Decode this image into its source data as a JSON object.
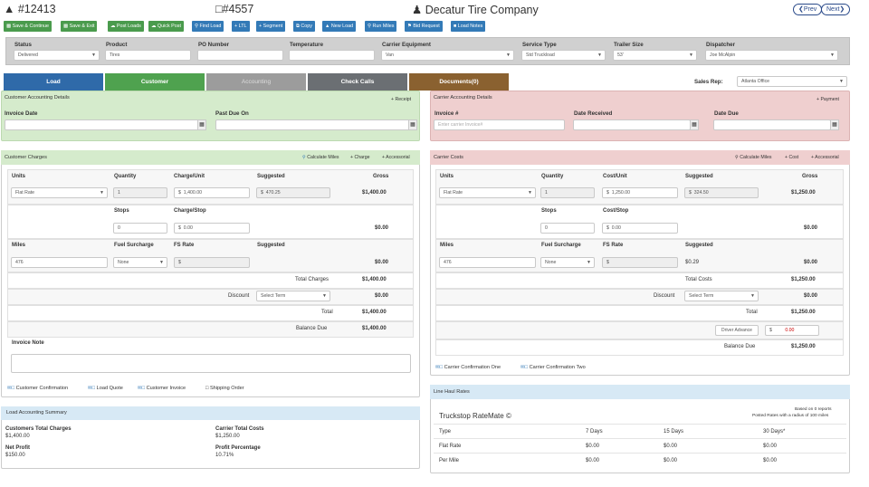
{
  "header": {
    "load_id": "#12413",
    "doc_id": "#4557",
    "company": "Decatur Tire Company",
    "prev": "Prev",
    "next": "Next"
  },
  "toolbar": [
    "Save & Continue",
    "Save & Exit",
    "Post Loads",
    "Quick Post",
    "Find Load",
    "LTL",
    "Segment",
    "Copy",
    "New Load",
    "Run Miles",
    "Bid Request",
    "Load Notes"
  ],
  "form": {
    "status_label": "Status",
    "status": "Delivered",
    "product_label": "Product",
    "product": "Tires",
    "po_label": "PO Number",
    "po": "",
    "temp_label": "Temperature",
    "temp": "",
    "equip_label": "Carrier Equipment",
    "equip": "Van",
    "service_label": "Service Type",
    "service": "Std Truckload",
    "trailer_label": "Trailer Size",
    "trailer": "53'",
    "dispatcher_label": "Dispatcher",
    "dispatcher": "Joe McAlpin"
  },
  "tabs": [
    "Load",
    "Customer",
    "Accounting",
    "Check Calls",
    "Documents(0)"
  ],
  "sales_rep_label": "Sales Rep:",
  "sales_rep": "Atlanta Office",
  "cust_acct": {
    "title": "Customer Accounting Details",
    "receipt": "+ Receipt",
    "invoice_date": "Invoice Date",
    "past_due": "Past Due On"
  },
  "carr_acct": {
    "title": "Carrier Accounting Details",
    "payment": "+ Payment",
    "invoice_no": "Invoice #",
    "invoice_placeholder": "Enter carrier Invoice#",
    "date_received": "Date Received",
    "date_due": "Date Due"
  },
  "cust_charges": {
    "title": "Customer Charges",
    "calc": "Calculate Miles",
    "charge": "+ Charge",
    "accessorial": "+ Accessorial",
    "h_units": "Units",
    "h_qty": "Quantity",
    "h_cpu": "Charge/Unit",
    "h_sugg": "Suggested",
    "h_gross": "Gross",
    "units": "Flat Rate",
    "qty": "1",
    "cpu": "1,400.00",
    "sugg": "470.25",
    "gross": "$1,400.00",
    "h_stops": "Stops",
    "h_cps": "Charge/Stop",
    "stops": "0",
    "cps": "0.00",
    "stops_gross": "$0.00",
    "h_miles": "Miles",
    "h_fuel": "Fuel Surcharge",
    "h_fs": "FS Rate",
    "h_sugg2": "Suggested",
    "miles": "476",
    "fuel": "None",
    "fs_gross": "$0.00",
    "total_charges_label": "Total Charges",
    "total_charges": "$1,400.00",
    "discount_label": "Discount",
    "discount": "Select Term",
    "discount_val": "$0.00",
    "total_label": "Total",
    "total": "$1,400.00",
    "balance_label": "Balance Due",
    "balance": "$1,400.00",
    "note_label": "Invoice Note",
    "links": [
      "Customer Confirmation",
      "Load Quote",
      "Customer Invoice",
      "Shipping Order"
    ]
  },
  "carr_costs": {
    "title": "Carrier Costs",
    "calc": "Calculate Miles",
    "cost": "+ Cost",
    "accessorial": "+ Accessorial",
    "h_units": "Units",
    "h_qty": "Quantity",
    "h_cpu": "Cost/Unit",
    "h_sugg": "Suggested",
    "h_gross": "Gross",
    "units": "Flat Rate",
    "qty": "1",
    "cpu": "1,250.00",
    "sugg": "324.50",
    "gross": "$1,250.00",
    "h_stops": "Stops",
    "h_cps": "Cost/Stop",
    "stops": "0",
    "cps": "0.00",
    "stops_gross": "$0.00",
    "h_miles": "Miles",
    "h_fuel": "Fuel Surcharge",
    "h_fs": "FS Rate",
    "h_sugg2": "Suggested",
    "miles": "476",
    "fuel": "None",
    "fs_sugg": "$0.29",
    "fs_gross": "$0.00",
    "total_costs_label": "Total Costs",
    "total_costs": "$1,250.00",
    "discount_label": "Discount",
    "discount": "Select Term",
    "discount_val": "$0.00",
    "total_label": "Total",
    "total": "$1,250.00",
    "driver_adv": "Driver Advance",
    "adv_val": "0.00",
    "balance_label": "Balance Due",
    "balance": "$1,250.00",
    "links": [
      "Carrier Confirmation One",
      "Carrier Confirmation Two"
    ]
  },
  "summary": {
    "title": "Load Accounting Summary",
    "cust_total_label": "Customers Total Charges",
    "cust_total": "$1,400.00",
    "carr_total_label": "Carrier Total Costs",
    "carr_total": "$1,250.00",
    "profit_label": "Net Profit",
    "profit": "$150.00",
    "pct_label": "Profit Percentage",
    "pct": "10.71%"
  },
  "linehaul": {
    "title": "Line Haul Rates",
    "rm_title": "Truckstop RateMate ©",
    "based": "Based on 0 reports",
    "posted": "Posted Rates with a radius of 100 miles",
    "cols": [
      "Type",
      "7 Days",
      "15 Days",
      "30 Days*"
    ],
    "rows": [
      [
        "Flat Rate",
        "$0.00",
        "$0.00",
        "$0.00"
      ],
      [
        "Per Mile",
        "$0.00",
        "$0.00",
        "$0.00"
      ]
    ]
  },
  "colors": {
    "green": "#4a9b4d",
    "blue": "#337ab7",
    "cust_bg": "#d5ebcc",
    "carr_bg": "#efcfcf",
    "summary_bg": "#d7e9f5"
  }
}
